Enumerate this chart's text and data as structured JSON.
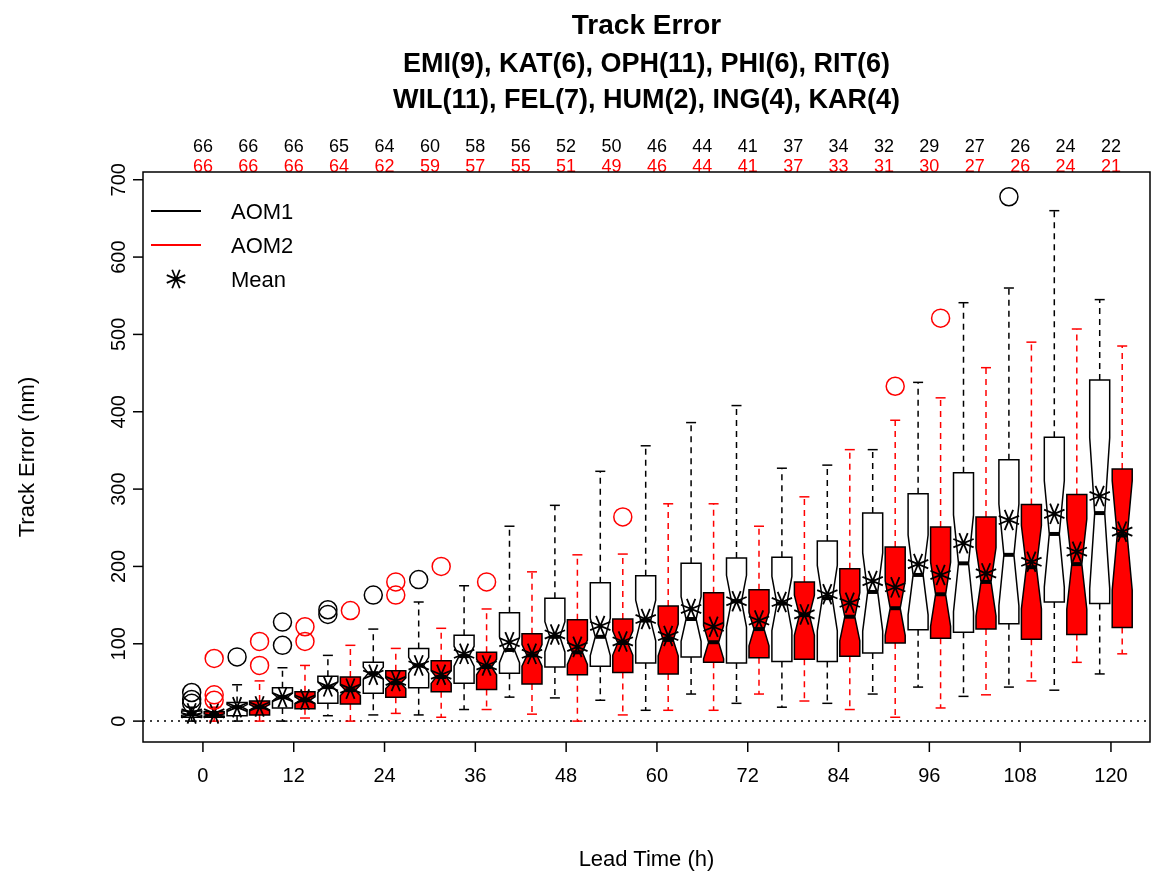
{
  "chart_data": {
    "type": "box",
    "title": "Track Error",
    "subtitle": "EMI(9), KAT(6), OPH(11), PHI(6), RIT(6)\nWIL(11), FEL(7), HUM(2), ING(4), KAR(4)",
    "xlabel": "Lead Time (h)",
    "ylabel": "Track Error (nm)",
    "categories": [
      "0",
      null,
      "12",
      null,
      "24",
      null,
      "36",
      null,
      "48",
      null,
      "60",
      null,
      "72",
      null,
      "84",
      null,
      "96",
      null,
      "108",
      null,
      "120"
    ],
    "ylim": [
      -27,
      710
    ],
    "yticks": [
      0,
      100,
      200,
      300,
      400,
      500,
      600,
      700
    ],
    "grid": false,
    "legend": "top left",
    "annotations": [
      "Mean"
    ],
    "ref_lines": [
      {
        "axis": "y",
        "value": 0,
        "line_style": "dotted",
        "color": "#000000"
      }
    ],
    "series": [
      {
        "name": "AOM1",
        "color": "#000000",
        "value_labels": [
          "66",
          "66",
          "66",
          "65",
          "64",
          "60",
          "58",
          "56",
          "52",
          "50",
          "46",
          "44",
          "41",
          "37",
          "34",
          "32",
          "29",
          "27",
          "26",
          "24",
          "22"
        ],
        "boxes": [
          {
            "low": 0,
            "q1": 5,
            "median": 9,
            "q3": 13,
            "high": 18,
            "mean": 10,
            "outliers": [
              23,
              28,
              37
            ]
          },
          {
            "low": 0,
            "q1": 7,
            "median": 18,
            "q3": 24,
            "high": 47,
            "mean": 18,
            "outliers": [
              83
            ]
          },
          {
            "low": 0,
            "q1": 17,
            "median": 31,
            "q3": 43,
            "high": 69,
            "mean": 31,
            "outliers": [
              98,
              128
            ]
          },
          {
            "low": 7,
            "q1": 23,
            "median": 44,
            "q3": 58,
            "high": 85,
            "mean": 45,
            "outliers": [
              138,
              144
            ]
          },
          {
            "low": 8,
            "q1": 36,
            "median": 62,
            "q3": 76,
            "high": 119,
            "mean": 60,
            "outliers": [
              163
            ]
          },
          {
            "low": 8,
            "q1": 43,
            "median": 72,
            "q3": 94,
            "high": 154,
            "mean": 72,
            "outliers": [
              183
            ]
          },
          {
            "low": 15,
            "q1": 49,
            "median": 84,
            "q3": 111,
            "high": 175,
            "mean": 87
          },
          {
            "low": 31,
            "q1": 62,
            "median": 92,
            "q3": 140,
            "high": 252,
            "mean": 102
          },
          {
            "low": 30,
            "q1": 70,
            "median": 109,
            "q3": 159,
            "high": 279,
            "mean": 112
          },
          {
            "low": 27,
            "q1": 71,
            "median": 109,
            "q3": 179,
            "high": 323,
            "mean": 123
          },
          {
            "low": 14,
            "q1": 75,
            "median": 130,
            "q3": 188,
            "high": 356,
            "mean": 132
          },
          {
            "low": 35,
            "q1": 83,
            "median": 132,
            "q3": 204,
            "high": 386,
            "mean": 145
          },
          {
            "low": 23,
            "q1": 75,
            "median": 155,
            "q3": 211,
            "high": 408,
            "mean": 155
          },
          {
            "low": 18,
            "q1": 77,
            "median": 152,
            "q3": 212,
            "high": 327,
            "mean": 154
          },
          {
            "low": 23,
            "q1": 77,
            "median": 159,
            "q3": 233,
            "high": 331,
            "mean": 164
          },
          {
            "low": 35,
            "q1": 88,
            "median": 167,
            "q3": 269,
            "high": 351,
            "mean": 181
          },
          {
            "low": 44,
            "q1": 118,
            "median": 189,
            "q3": 294,
            "high": 438,
            "mean": 203
          },
          {
            "low": 32,
            "q1": 115,
            "median": 204,
            "q3": 321,
            "high": 541,
            "mean": 230
          },
          {
            "low": 44,
            "q1": 126,
            "median": 215,
            "q3": 338,
            "high": 560,
            "mean": 260,
            "outliers": [
              678
            ]
          },
          {
            "low": 40,
            "q1": 154,
            "median": 242,
            "q3": 367,
            "high": 660,
            "mean": 268
          },
          {
            "low": 61,
            "q1": 152,
            "median": 269,
            "q3": 441,
            "high": 545,
            "mean": 291
          }
        ]
      },
      {
        "name": "AOM2",
        "color": "#ff0000",
        "value_labels": [
          "66",
          "66",
          "66",
          "64",
          "62",
          "59",
          "57",
          "55",
          "51",
          "49",
          "46",
          "44",
          "41",
          "37",
          "33",
          "31",
          "30",
          "27",
          "26",
          "24",
          "21"
        ],
        "boxes": [
          {
            "low": 0,
            "q1": 5,
            "median": 8,
            "q3": 12,
            "high": 18,
            "mean": 10,
            "outliers": [
              27,
              34,
              81
            ]
          },
          {
            "low": 0,
            "q1": 8,
            "median": 18,
            "q3": 26,
            "high": 52,
            "mean": 19,
            "outliers": [
              72,
              103
            ]
          },
          {
            "low": 4,
            "q1": 16,
            "median": 27,
            "q3": 38,
            "high": 72,
            "mean": 28,
            "outliers": [
              103,
              122
            ]
          },
          {
            "low": 0,
            "q1": 22,
            "median": 40,
            "q3": 57,
            "high": 98,
            "mean": 42,
            "outliers": [
              143
            ]
          },
          {
            "low": 10,
            "q1": 31,
            "median": 49,
            "q3": 65,
            "high": 94,
            "mean": 52,
            "outliers": [
              163,
              180
            ]
          },
          {
            "low": 5,
            "q1": 38,
            "median": 57,
            "q3": 78,
            "high": 120,
            "mean": 60,
            "outliers": [
              200
            ]
          },
          {
            "low": 15,
            "q1": 41,
            "median": 70,
            "q3": 89,
            "high": 145,
            "mean": 72,
            "outliers": [
              180
            ]
          },
          {
            "low": 9,
            "q1": 48,
            "median": 85,
            "q3": 113,
            "high": 193,
            "mean": 87
          },
          {
            "low": 0,
            "q1": 60,
            "median": 89,
            "q3": 131,
            "high": 215,
            "mean": 96
          },
          {
            "low": 8,
            "q1": 63,
            "median": 101,
            "q3": 132,
            "high": 216,
            "mean": 103,
            "outliers": [
              264
            ]
          },
          {
            "low": 14,
            "q1": 61,
            "median": 105,
            "q3": 149,
            "high": 281,
            "mean": 110
          },
          {
            "low": 14,
            "q1": 76,
            "median": 102,
            "q3": 166,
            "high": 281,
            "mean": 122
          },
          {
            "low": 35,
            "q1": 82,
            "median": 119,
            "q3": 170,
            "high": 252,
            "mean": 130
          },
          {
            "low": 26,
            "q1": 80,
            "median": 137,
            "q3": 180,
            "high": 290,
            "mean": 138
          },
          {
            "low": 15,
            "q1": 84,
            "median": 135,
            "q3": 197,
            "high": 351,
            "mean": 153
          },
          {
            "low": 5,
            "q1": 101,
            "median": 146,
            "q3": 225,
            "high": 389,
            "mean": 173,
            "outliers": [
              433
            ]
          },
          {
            "low": 17,
            "q1": 107,
            "median": 164,
            "q3": 251,
            "high": 418,
            "mean": 189,
            "outliers": [
              521
            ]
          },
          {
            "low": 34,
            "q1": 119,
            "median": 180,
            "q3": 264,
            "high": 457,
            "mean": 191
          },
          {
            "low": 52,
            "q1": 106,
            "median": 199,
            "q3": 280,
            "high": 490,
            "mean": 206
          },
          {
            "low": 76,
            "q1": 112,
            "median": 203,
            "q3": 293,
            "high": 507,
            "mean": 219
          },
          {
            "low": 87,
            "q1": 121,
            "median": 240,
            "q3": 326,
            "high": 485,
            "mean": 245
          }
        ]
      }
    ]
  }
}
